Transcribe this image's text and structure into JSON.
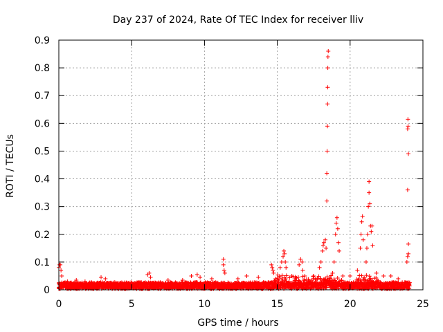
{
  "chart_data": {
    "type": "scatter",
    "title": "Day 237 of 2024, Rate Of TEC Index for receiver lliv",
    "xlabel": "GPS time / hours",
    "ylabel": "ROTI / TECUs",
    "xlim": [
      0,
      25
    ],
    "ylim": [
      0,
      0.9
    ],
    "xticks": [
      0,
      5,
      10,
      15,
      20,
      25
    ],
    "yticks": [
      0,
      0.1,
      0.2,
      0.3,
      0.4,
      0.5,
      0.6,
      0.7,
      0.8,
      0.9
    ],
    "xtick_labels": [
      "0",
      "5",
      "10",
      "15",
      "20",
      "25"
    ],
    "ytick_labels": [
      "0",
      "0.1",
      "0.2",
      "0.3",
      "0.4",
      "0.5",
      "0.6",
      "0.7",
      "0.8",
      "0.9"
    ],
    "grid": true,
    "marker": "+",
    "color": "#ff0000",
    "series": [
      {
        "name": "ROTI",
        "points": [
          [
            0.0,
            0.08
          ],
          [
            0.05,
            0.09
          ],
          [
            0.1,
            0.09
          ],
          [
            0.15,
            0.07
          ],
          [
            0.2,
            0.05
          ],
          [
            0.6,
            0.03
          ],
          [
            1.2,
            0.035
          ],
          [
            1.8,
            0.03
          ],
          [
            2.9,
            0.045
          ],
          [
            3.2,
            0.04
          ],
          [
            6.1,
            0.055
          ],
          [
            6.2,
            0.06
          ],
          [
            6.3,
            0.045
          ],
          [
            7.5,
            0.035
          ],
          [
            8.5,
            0.035
          ],
          [
            9.1,
            0.05
          ],
          [
            9.5,
            0.055
          ],
          [
            9.7,
            0.045
          ],
          [
            10.5,
            0.04
          ],
          [
            11.3,
            0.11
          ],
          [
            11.3,
            0.09
          ],
          [
            11.35,
            0.07
          ],
          [
            11.4,
            0.06
          ],
          [
            12.3,
            0.04
          ],
          [
            12.9,
            0.05
          ],
          [
            13.7,
            0.045
          ],
          [
            14.6,
            0.09
          ],
          [
            14.65,
            0.08
          ],
          [
            14.7,
            0.07
          ],
          [
            14.75,
            0.06
          ],
          [
            15.2,
            0.08
          ],
          [
            15.3,
            0.1
          ],
          [
            15.4,
            0.12
          ],
          [
            15.45,
            0.14
          ],
          [
            15.5,
            0.13
          ],
          [
            15.55,
            0.1
          ],
          [
            15.6,
            0.08
          ],
          [
            16.0,
            0.05
          ],
          [
            16.5,
            0.09
          ],
          [
            16.6,
            0.11
          ],
          [
            16.7,
            0.1
          ],
          [
            16.75,
            0.07
          ],
          [
            17.5,
            0.05
          ],
          [
            17.9,
            0.08
          ],
          [
            18.0,
            0.1
          ],
          [
            18.1,
            0.14
          ],
          [
            18.15,
            0.16
          ],
          [
            18.2,
            0.17
          ],
          [
            18.3,
            0.18
          ],
          [
            18.35,
            0.15
          ],
          [
            18.4,
            0.32
          ],
          [
            18.4,
            0.42
          ],
          [
            18.42,
            0.5
          ],
          [
            18.44,
            0.59
          ],
          [
            18.45,
            0.67
          ],
          [
            18.46,
            0.73
          ],
          [
            18.47,
            0.8
          ],
          [
            18.48,
            0.84
          ],
          [
            18.5,
            0.86
          ],
          [
            18.8,
            0.06
          ],
          [
            18.9,
            0.1
          ],
          [
            19.0,
            0.2
          ],
          [
            19.05,
            0.24
          ],
          [
            19.1,
            0.26
          ],
          [
            19.15,
            0.22
          ],
          [
            19.2,
            0.17
          ],
          [
            19.25,
            0.14
          ],
          [
            19.5,
            0.05
          ],
          [
            20.0,
            0.05
          ],
          [
            20.5,
            0.07
          ],
          [
            20.7,
            0.15
          ],
          [
            20.75,
            0.2
          ],
          [
            20.8,
            0.245
          ],
          [
            20.85,
            0.265
          ],
          [
            20.9,
            0.18
          ],
          [
            21.1,
            0.1
          ],
          [
            21.15,
            0.15
          ],
          [
            21.2,
            0.2
          ],
          [
            21.25,
            0.3
          ],
          [
            21.3,
            0.35
          ],
          [
            21.3,
            0.39
          ],
          [
            21.35,
            0.31
          ],
          [
            21.4,
            0.23
          ],
          [
            21.45,
            0.21
          ],
          [
            21.5,
            0.23
          ],
          [
            21.55,
            0.16
          ],
          [
            21.8,
            0.06
          ],
          [
            22.3,
            0.05
          ],
          [
            22.8,
            0.05
          ],
          [
            23.3,
            0.04
          ],
          [
            23.9,
            0.1
          ],
          [
            23.95,
            0.12
          ],
          [
            24.0,
            0.165
          ],
          [
            23.95,
            0.36
          ],
          [
            24.0,
            0.49
          ],
          [
            23.95,
            0.58
          ],
          [
            23.98,
            0.59
          ],
          [
            23.97,
            0.615
          ],
          [
            24.0,
            0.13
          ]
        ]
      }
    ]
  }
}
